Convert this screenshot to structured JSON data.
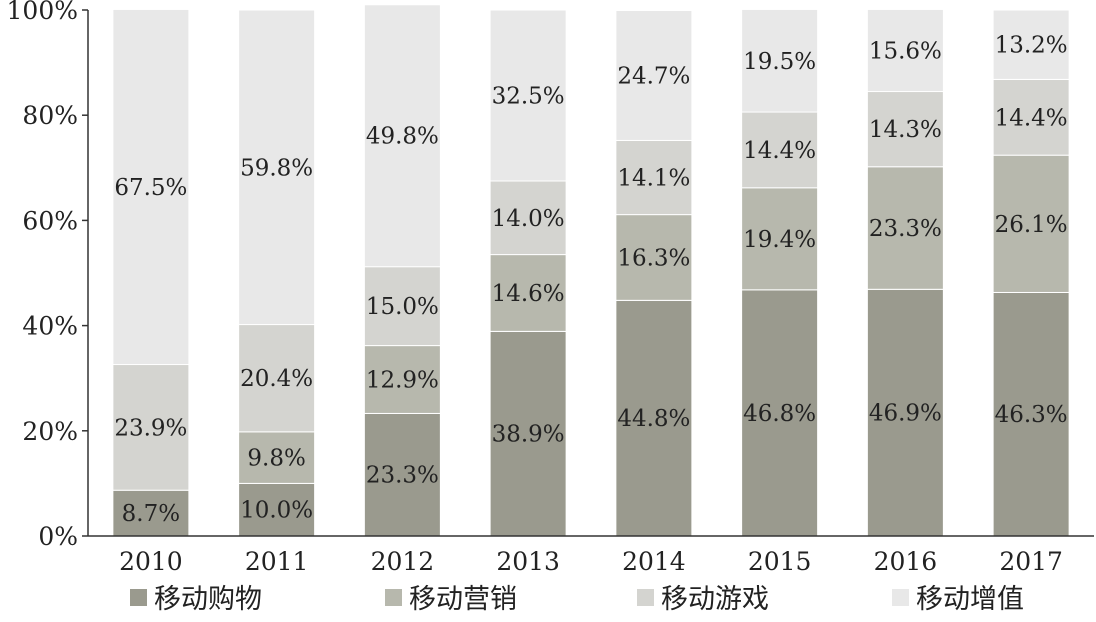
{
  "chart_data": {
    "type": "bar",
    "stacked": true,
    "categories": [
      "2010",
      "2011",
      "2012",
      "2013",
      "2014",
      "2015",
      "2016",
      "2017"
    ],
    "series": [
      {
        "name": "移动购物",
        "color": "#9a9a8e",
        "values": [
          8.7,
          10.0,
          23.3,
          38.9,
          44.8,
          46.8,
          46.9,
          46.3
        ],
        "labels": [
          "8.7%",
          "10.0%",
          "23.3%",
          "38.9%",
          "44.8%",
          "46.8%",
          "46.9%",
          "46.3%"
        ]
      },
      {
        "name": "移动营销",
        "color": "#b7b8ad",
        "values": [
          0,
          9.8,
          12.9,
          14.6,
          16.3,
          19.4,
          23.3,
          26.1
        ],
        "labels": [
          "",
          "9.8%",
          "12.9%",
          "14.6%",
          "16.3%",
          "19.4%",
          "23.3%",
          "26.1%"
        ]
      },
      {
        "name": "移动游戏",
        "color": "#d4d4d0",
        "values": [
          23.9,
          20.4,
          15.0,
          14.0,
          14.1,
          14.4,
          14.3,
          14.4
        ],
        "labels": [
          "23.9%",
          "20.4%",
          "15.0%",
          "14.0%",
          "14.1%",
          "14.4%",
          "14.3%",
          "14.4%"
        ]
      },
      {
        "name": "移动增值",
        "color": "#e8e8e8",
        "values": [
          67.5,
          59.8,
          49.8,
          32.5,
          24.7,
          19.5,
          15.6,
          13.2
        ],
        "labels": [
          "67.5%",
          "59.8%",
          "49.8%",
          "32.5%",
          "24.7%",
          "19.5%",
          "15.6%",
          "13.2%"
        ]
      }
    ],
    "yticks": [
      "0%",
      "20%",
      "40%",
      "60%",
      "80%",
      "100%"
    ],
    "ylim": [
      0,
      100
    ],
    "legend": "bottom",
    "grid": false
  }
}
